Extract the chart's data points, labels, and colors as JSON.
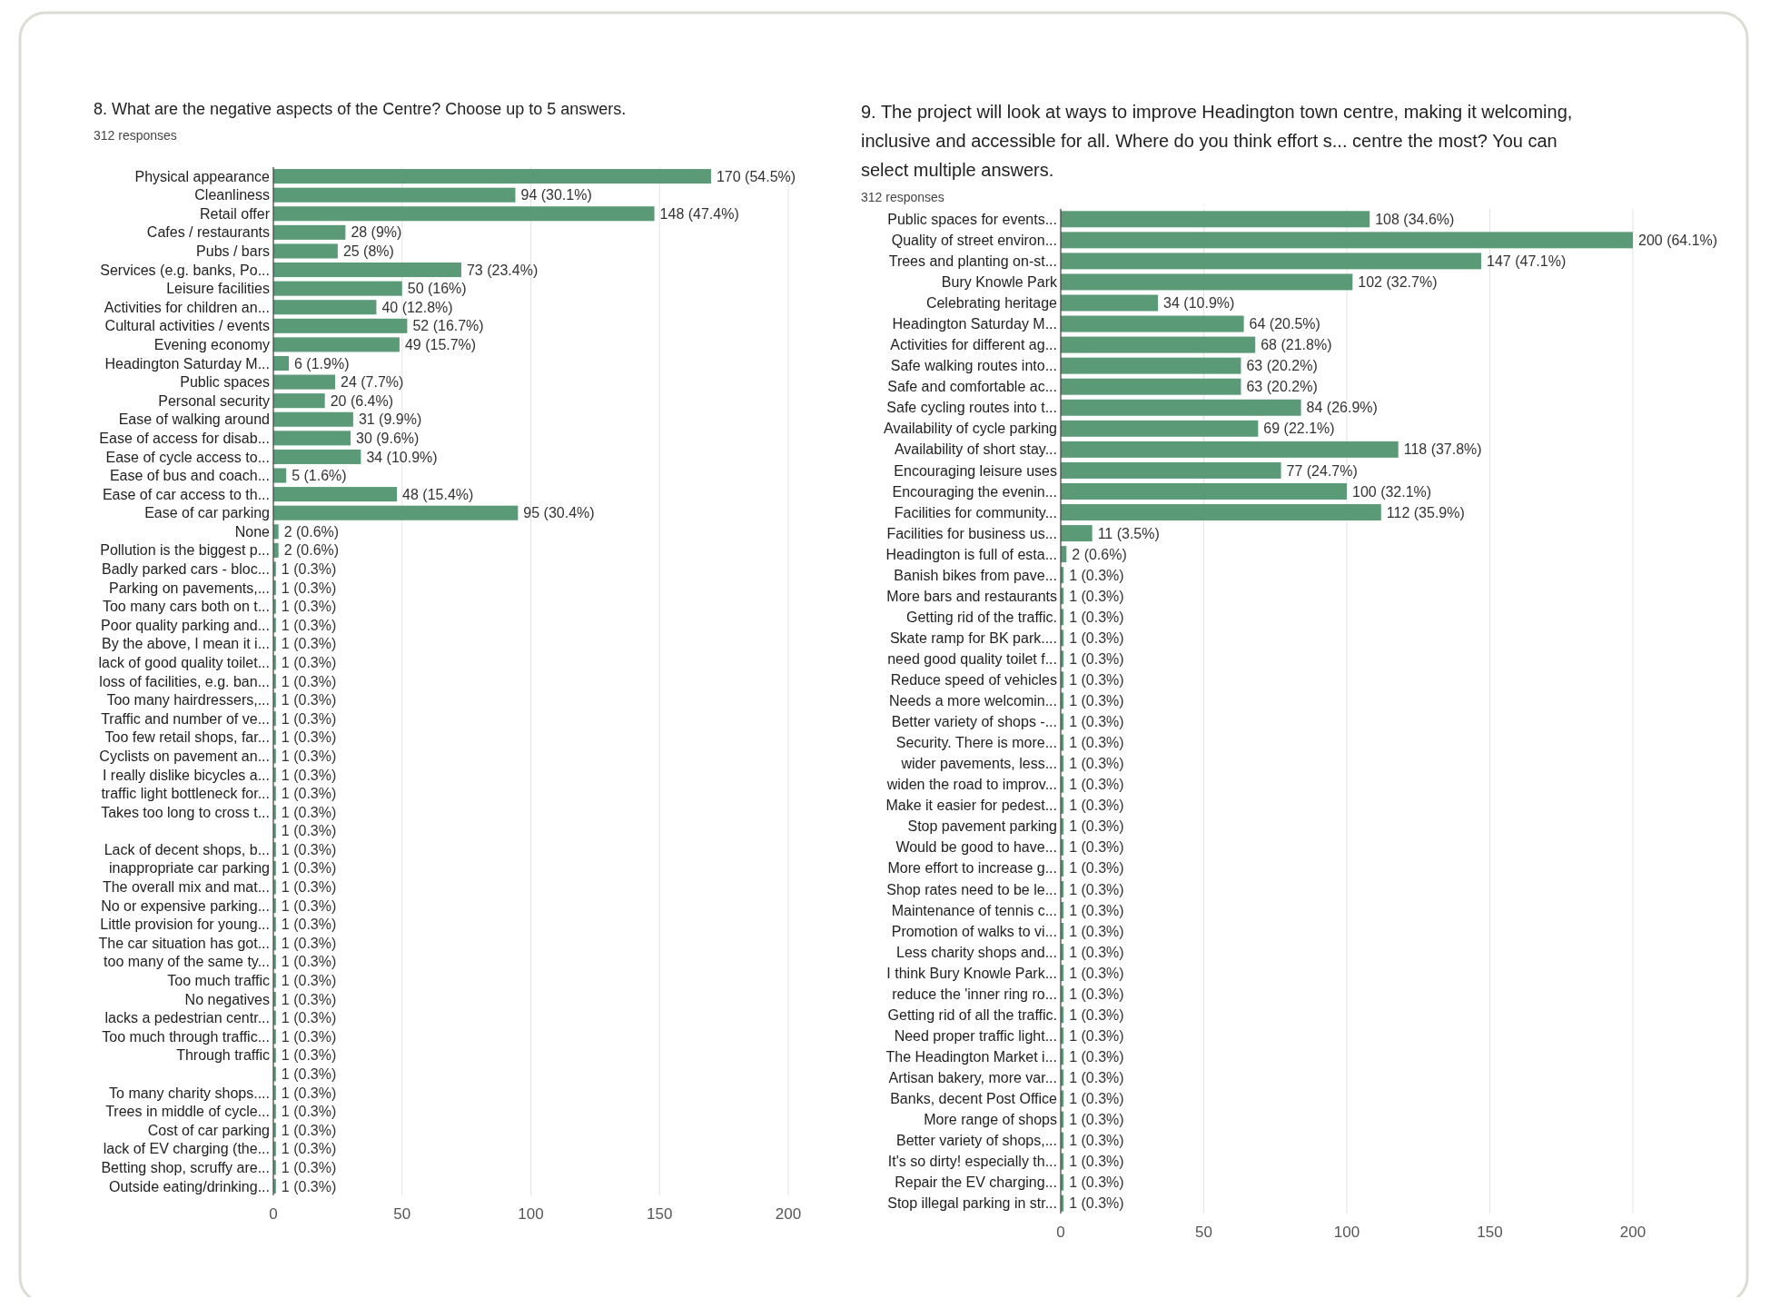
{
  "chart_data": [
    {
      "type": "bar",
      "orientation": "horizontal",
      "title": "8. What are the negative aspects of the Centre? Choose up to 5 answers.",
      "subtitle": "312 responses",
      "color": "#5b9a77",
      "grid": "x",
      "xlim": [
        0,
        200
      ],
      "xticks": [
        0,
        50,
        100,
        150,
        200
      ],
      "categories": [
        "Physical appearance",
        "Cleanliness",
        "Retail offer",
        "Cafes / restaurants",
        "Pubs / bars",
        "Services (e.g. banks, Po...",
        "Leisure facilities",
        "Activities for children an...",
        "Cultural activities / events",
        "Evening economy",
        "Headington Saturday M...",
        "Public spaces",
        "Personal security",
        "Ease of walking around",
        "Ease of access for disab...",
        "Ease of cycle access to...",
        "Ease of bus and coach...",
        "Ease of car access to th...",
        "Ease of car parking",
        "None",
        "Pollution is the biggest p...",
        "Badly parked cars - bloc...",
        "Parking on pavements,...",
        "Too many cars both on t...",
        "Poor quality parking and...",
        "By the above, I mean it i...",
        "lack of good quality toilet...",
        "loss of facilities, e.g. ban...",
        "Too many hairdressers,...",
        "Traffic and number of ve...",
        "Too few retail shops, far...",
        "Cyclists on pavement an...",
        "I really dislike bicycles a...",
        "traffic light bottleneck for...",
        "Takes too long to cross t...",
        null,
        "Lack of decent shops, b...",
        "inappropriate car parking",
        "The overall mix and mat...",
        "No or expensive parking...",
        "Little provision for young...",
        "The car situation has got...",
        "too many of the same ty...",
        "Too much traffic",
        "No negatives",
        "lacks a pedestrian centr...",
        "Too much through traffic...",
        "Through traffic",
        null,
        "To many charity shops....",
        "Trees in middle of cycle...",
        "Cost of car parking",
        "lack of EV charging (the...",
        "Betting shop, scruffy are...",
        "Outside eating/drinking..."
      ],
      "values": [
        170,
        94,
        148,
        28,
        25,
        73,
        50,
        40,
        52,
        49,
        6,
        24,
        20,
        31,
        30,
        34,
        5,
        48,
        95,
        2,
        2,
        1,
        1,
        1,
        1,
        1,
        1,
        1,
        1,
        1,
        1,
        1,
        1,
        1,
        1,
        1,
        1,
        1,
        1,
        1,
        1,
        1,
        1,
        1,
        1,
        1,
        1,
        1,
        1,
        1,
        1,
        1,
        1,
        1,
        1
      ],
      "value_labels": [
        "170 (54.5%)",
        "94 (30.1%)",
        "148 (47.4%)",
        "28 (9%)",
        "25 (8%)",
        "73 (23.4%)",
        "50 (16%)",
        "40 (12.8%)",
        "52 (16.7%)",
        "49 (15.7%)",
        "6 (1.9%)",
        "24 (7.7%)",
        "20 (6.4%)",
        "31 (9.9%)",
        "30 (9.6%)",
        "34 (10.9%)",
        "5 (1.6%)",
        "48 (15.4%)",
        "95 (30.4%)",
        "2 (0.6%)",
        "2 (0.6%)",
        "1 (0.3%)",
        "1 (0.3%)",
        "1 (0.3%)",
        "1 (0.3%)",
        "1 (0.3%)",
        "1 (0.3%)",
        "1 (0.3%)",
        "1 (0.3%)",
        "1 (0.3%)",
        "1 (0.3%)",
        "1 (0.3%)",
        "1 (0.3%)",
        "1 (0.3%)",
        "1 (0.3%)",
        "1 (0.3%)",
        "1 (0.3%)",
        "1 (0.3%)",
        "1 (0.3%)",
        "1 (0.3%)",
        "1 (0.3%)",
        "1 (0.3%)",
        "1 (0.3%)",
        "1 (0.3%)",
        "1 (0.3%)",
        "1 (0.3%)",
        "1 (0.3%)",
        "1 (0.3%)",
        "1 (0.3%)",
        "1 (0.3%)",
        "1 (0.3%)",
        "1 (0.3%)",
        "1 (0.3%)",
        "1 (0.3%)",
        "1 (0.3%)"
      ]
    },
    {
      "type": "bar",
      "orientation": "horizontal",
      "title": "9.  The project will look at ways to improve Headington town centre, making it welcoming, inclusive and accessible for all. Where do you think effort s... centre the most? You can select multiple answers.",
      "subtitle": "312 responses",
      "color": "#5b9a77",
      "grid": "x",
      "xlim": [
        0,
        200
      ],
      "xticks": [
        0,
        50,
        100,
        150,
        200
      ],
      "categories": [
        "Public spaces for events...",
        "Quality of street environ...",
        "Trees and planting on-st...",
        "Bury Knowle Park",
        "Celebrating heritage",
        "Headington Saturday M...",
        "Activities for different ag...",
        "Safe walking routes into...",
        "Safe and comfortable ac...",
        "Safe cycling routes into t...",
        "Availability of cycle parking",
        "Availability of short stay...",
        "Encouraging leisure uses",
        "Encouraging the evenin...",
        "Facilities for community...",
        "Facilities for business us...",
        "Headington is full of esta...",
        "Banish bikes from pave...",
        "More bars and restaurants",
        "Getting rid of the traffic.",
        "Skate ramp for BK park....",
        "need good quality toilet f...",
        "Reduce speed of vehicles",
        "Needs a more welcomin...",
        "Better variety of shops -...",
        "Security. There is more...",
        "wider pavements, less...",
        "widen the road to improv...",
        "Make it easier for pedest...",
        "Stop pavement parking",
        "Would be good to have...",
        "More effort to increase g...",
        "Shop rates need to be le...",
        "Maintenance of tennis c...",
        "Promotion of walks to vi...",
        "Less charity shops and...",
        "I think Bury Knowle Park...",
        "reduce the 'inner ring ro...",
        "Getting rid of all the traffic.",
        "Need proper traffic light...",
        "The Headington Market i...",
        "Artisan bakery, more var...",
        "Banks, decent Post Office",
        "More range of shops",
        "Better variety of shops,...",
        "It's so dirty! especially th...",
        "Repair the EV charging...",
        "Stop illegal parking in str..."
      ],
      "values": [
        108,
        200,
        147,
        102,
        34,
        64,
        68,
        63,
        63,
        84,
        69,
        118,
        77,
        100,
        112,
        11,
        2,
        1,
        1,
        1,
        1,
        1,
        1,
        1,
        1,
        1,
        1,
        1,
        1,
        1,
        1,
        1,
        1,
        1,
        1,
        1,
        1,
        1,
        1,
        1,
        1,
        1,
        1,
        1,
        1,
        1,
        1,
        1
      ],
      "value_labels": [
        "108 (34.6%)",
        "200 (64.1%)",
        "147 (47.1%)",
        "102 (32.7%)",
        "34 (10.9%)",
        "64 (20.5%)",
        "68 (21.8%)",
        "63 (20.2%)",
        "63 (20.2%)",
        "84 (26.9%)",
        "69 (22.1%)",
        "118 (37.8%)",
        "77 (24.7%)",
        "100 (32.1%)",
        "112 (35.9%)",
        "11 (3.5%)",
        "2 (0.6%)",
        "1 (0.3%)",
        "1 (0.3%)",
        "1 (0.3%)",
        "1 (0.3%)",
        "1 (0.3%)",
        "1 (0.3%)",
        "1 (0.3%)",
        "1 (0.3%)",
        "1 (0.3%)",
        "1 (0.3%)",
        "1 (0.3%)",
        "1 (0.3%)",
        "1 (0.3%)",
        "1 (0.3%)",
        "1 (0.3%)",
        "1 (0.3%)",
        "1 (0.3%)",
        "1 (0.3%)",
        "1 (0.3%)",
        "1 (0.3%)",
        "1 (0.3%)",
        "1 (0.3%)",
        "1 (0.3%)",
        "1 (0.3%)",
        "1 (0.3%)",
        "1 (0.3%)",
        "1 (0.3%)",
        "1 (0.3%)",
        "1 (0.3%)",
        "1 (0.3%)",
        "1 (0.3%)"
      ]
    }
  ]
}
